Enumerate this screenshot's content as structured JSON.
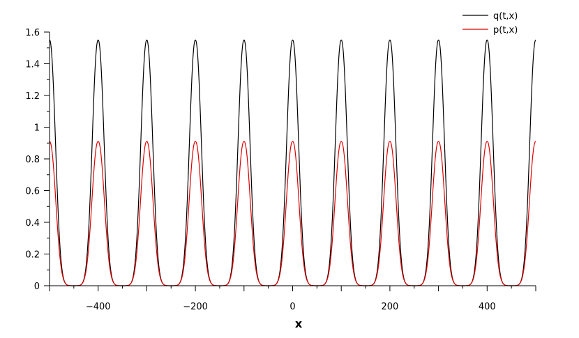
{
  "chart_data": {
    "type": "line",
    "title": "",
    "xlabel": "x",
    "ylabel": "",
    "xlim": [
      -500,
      500
    ],
    "ylim": [
      0,
      1.6
    ],
    "x_ticks": [
      -400,
      -200,
      0,
      200,
      400
    ],
    "x_tick_labels": [
      "−400",
      "−200",
      "0",
      "200",
      "400"
    ],
    "x_minor_step": 50,
    "y_ticks": [
      0,
      0.2,
      0.4,
      0.6,
      0.8,
      1,
      1.2,
      1.4,
      1.6
    ],
    "y_tick_labels": [
      "0",
      "0.2",
      "0.4",
      "0.6",
      "0.8",
      "1",
      "1.2",
      "1.4",
      "1.6"
    ],
    "y_minor_step": 0.1,
    "grid": false,
    "legend_position": "top-right",
    "series": [
      {
        "name": "q(t,x)",
        "color": "#000000",
        "peak_value": 1.55,
        "peak_x": [
          -500,
          -400,
          -300,
          -200,
          -100,
          0,
          100,
          200,
          300,
          400,
          500
        ],
        "period": 100,
        "peak_half_width": 19
      },
      {
        "name": "p(t,x)",
        "color": "#e00000",
        "peak_value": 0.91,
        "peak_x": [
          -500,
          -400,
          -300,
          -200,
          -100,
          0,
          100,
          200,
          300,
          400,
          500
        ],
        "period": 100,
        "peak_half_width": 20
      }
    ]
  }
}
